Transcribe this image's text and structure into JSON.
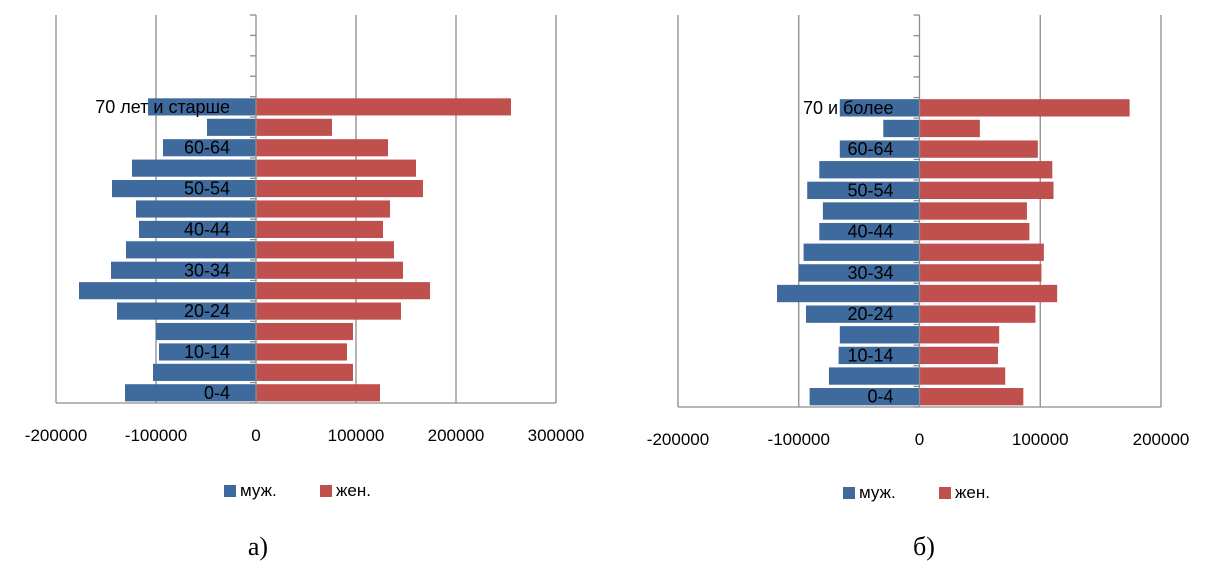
{
  "colors": {
    "male": "#3F6A9E",
    "female": "#C0504D",
    "grid": "#8C8C8C",
    "axis": "#8C8C8C"
  },
  "chart_data": [
    {
      "type": "bar",
      "orientation": "horizontal",
      "stacked": "diverging",
      "caption": "а)",
      "categories": [
        "0-4",
        "",
        "10-14",
        "",
        "20-24",
        "",
        "30-34",
        "",
        "40-44",
        "",
        "50-54",
        "",
        "60-64",
        "",
        "70 лет и старше",
        "",
        "",
        "",
        ""
      ],
      "series": [
        {
          "name": "муж.",
          "values": [
            -131000,
            -103000,
            -97000,
            -100000,
            -139000,
            -177000,
            -145000,
            -130000,
            -117000,
            -120000,
            -144000,
            -124000,
            -93000,
            -49000,
            -108000,
            0,
            0,
            0,
            0
          ]
        },
        {
          "name": "жен.",
          "values": [
            124000,
            97000,
            91000,
            97000,
            145000,
            174000,
            147000,
            138000,
            127000,
            134000,
            167000,
            160000,
            132000,
            76000,
            255000,
            0,
            0,
            0,
            0
          ]
        }
      ],
      "xlim": [
        -200000,
        300000
      ],
      "xticks": [
        "-200000",
        "-100000",
        "0",
        "100000",
        "200000",
        "300000"
      ],
      "legend": [
        "муж.",
        "жен."
      ],
      "legend_position": "bottom",
      "grid": true
    },
    {
      "type": "bar",
      "orientation": "horizontal",
      "stacked": "diverging",
      "caption": "б)",
      "categories": [
        "0-4",
        "",
        "10-14",
        "",
        "20-24",
        "",
        "30-34",
        "",
        "40-44",
        "",
        "50-54",
        "",
        "60-64",
        "",
        "70 и более",
        "",
        "",
        "",
        ""
      ],
      "series": [
        {
          "name": "муж.",
          "values": [
            -91000,
            -75000,
            -67000,
            -66000,
            -94000,
            -118000,
            -100000,
            -96000,
            -83000,
            -80000,
            -93000,
            -83000,
            -66000,
            -30000,
            -66000,
            0,
            0,
            0,
            0
          ]
        },
        {
          "name": "жен.",
          "values": [
            86000,
            71000,
            65000,
            66000,
            96000,
            114000,
            101000,
            103000,
            91000,
            89000,
            111000,
            110000,
            98000,
            50000,
            174000,
            0,
            0,
            0,
            0
          ]
        }
      ],
      "xlim": [
        -200000,
        200000
      ],
      "xticks": [
        "-200000",
        "-100000",
        "0",
        "100000",
        "200000"
      ],
      "legend": [
        "муж.",
        "жен."
      ],
      "legend_position": "bottom",
      "grid": true
    }
  ]
}
